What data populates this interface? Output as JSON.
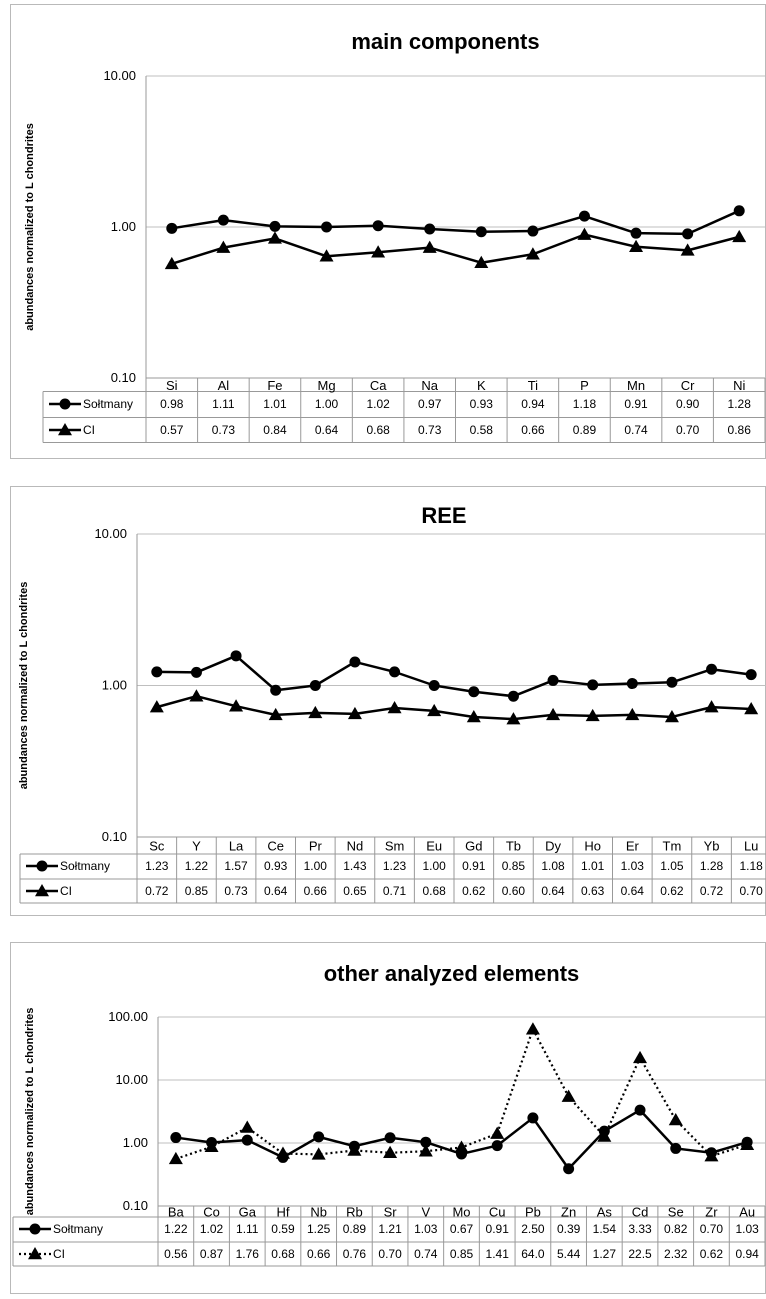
{
  "chart_data": [
    {
      "type": "line",
      "title": "main components",
      "ylabel": "abundances normalized to L chondrites",
      "yscale": "log",
      "ylim": [
        0.1,
        10
      ],
      "yticks": [
        "0.10",
        "1.00",
        "10.00"
      ],
      "categories": [
        "Si",
        "Al",
        "Fe",
        "Mg",
        "Ca",
        "Na",
        "K",
        "Ti",
        "P",
        "Mn",
        "Cr",
        "Ni"
      ],
      "series": [
        {
          "name": "Sołtmany",
          "marker": "circle",
          "style": "solid",
          "values": [
            0.98,
            1.11,
            1.01,
            1.0,
            1.02,
            0.97,
            0.93,
            0.94,
            1.18,
            0.91,
            0.9,
            1.28
          ],
          "labels": [
            "0.98",
            "1.11",
            "1.01",
            "1.00",
            "1.02",
            "0.97",
            "0.93",
            "0.94",
            "1.18",
            "0.91",
            "0.90",
            "1.28"
          ]
        },
        {
          "name": "CI",
          "marker": "triangle",
          "style": "solid",
          "values": [
            0.57,
            0.73,
            0.84,
            0.64,
            0.68,
            0.73,
            0.58,
            0.66,
            0.89,
            0.74,
            0.7,
            0.86
          ],
          "labels": [
            "0.57",
            "0.73",
            "0.84",
            "0.64",
            "0.68",
            "0.73",
            "0.58",
            "0.66",
            "0.89",
            "0.74",
            "0.70",
            "0.86"
          ]
        }
      ],
      "grid": true,
      "legend": "data-table"
    },
    {
      "type": "line",
      "title": "REE",
      "ylabel": "abundances normalized to L chondrites",
      "yscale": "log",
      "ylim": [
        0.1,
        10
      ],
      "yticks": [
        "0.10",
        "1.00",
        "10.00"
      ],
      "categories": [
        "Sc",
        "Y",
        "La",
        "Ce",
        "Pr",
        "Nd",
        "Sm",
        "Eu",
        "Gd",
        "Tb",
        "Dy",
        "Ho",
        "Er",
        "Tm",
        "Yb",
        "Lu"
      ],
      "series": [
        {
          "name": "Sołtmany",
          "marker": "circle",
          "style": "solid",
          "values": [
            1.23,
            1.22,
            1.57,
            0.93,
            1.0,
            1.43,
            1.23,
            1.0,
            0.91,
            0.85,
            1.08,
            1.01,
            1.03,
            1.05,
            1.28,
            1.18
          ],
          "labels": [
            "1.23",
            "1.22",
            "1.57",
            "0.93",
            "1.00",
            "1.43",
            "1.23",
            "1.00",
            "0.91",
            "0.85",
            "1.08",
            "1.01",
            "1.03",
            "1.05",
            "1.28",
            "1.18"
          ]
        },
        {
          "name": "CI",
          "marker": "triangle",
          "style": "solid",
          "values": [
            0.72,
            0.85,
            0.73,
            0.64,
            0.66,
            0.65,
            0.71,
            0.68,
            0.62,
            0.6,
            0.64,
            0.63,
            0.64,
            0.62,
            0.72,
            0.7
          ],
          "labels": [
            "0.72",
            "0.85",
            "0.73",
            "0.64",
            "0.66",
            "0.65",
            "0.71",
            "0.68",
            "0.62",
            "0.60",
            "0.64",
            "0.63",
            "0.64",
            "0.62",
            "0.72",
            "0.70"
          ]
        }
      ],
      "grid": true,
      "legend": "data-table"
    },
    {
      "type": "line",
      "title": "other analyzed elements",
      "ylabel": "abundances normalized to L chondrites",
      "yscale": "log",
      "ylim": [
        0.1,
        100
      ],
      "yticks": [
        "0.10",
        "1.00",
        "10.00",
        "100.00"
      ],
      "categories": [
        "Ba",
        "Co",
        "Ga",
        "Hf",
        "Nb",
        "Rb",
        "Sr",
        "V",
        "Mo",
        "Cu",
        "Pb",
        "Zn",
        "As",
        "Cd",
        "Se",
        "Zr",
        "Au"
      ],
      "series": [
        {
          "name": "Sołtmany",
          "marker": "circle",
          "style": "solid",
          "values": [
            1.22,
            1.02,
            1.11,
            0.59,
            1.25,
            0.89,
            1.21,
            1.03,
            0.67,
            0.91,
            2.5,
            0.39,
            1.54,
            3.33,
            0.82,
            0.7,
            1.03
          ],
          "labels": [
            "1.22",
            "1.02",
            "1.11",
            "0.59",
            "1.25",
            "0.89",
            "1.21",
            "1.03",
            "0.67",
            "0.91",
            "2.50",
            "0.39",
            "1.54",
            "3.33",
            "0.82",
            "0.70",
            "1.03"
          ]
        },
        {
          "name": "CI",
          "marker": "triangle",
          "style": "dotted",
          "values": [
            0.56,
            0.87,
            1.76,
            0.68,
            0.66,
            0.76,
            0.7,
            0.74,
            0.85,
            1.41,
            64.0,
            5.44,
            1.27,
            22.5,
            2.32,
            0.62,
            0.94
          ],
          "labels": [
            "0.56",
            "0.87",
            "1.76",
            "0.68",
            "0.66",
            "0.76",
            "0.70",
            "0.74",
            "0.85",
            "1.41",
            "64.0",
            "5.44",
            "1.27",
            "22.5",
            "2.32",
            "0.62",
            "0.94"
          ]
        }
      ],
      "grid": true,
      "legend": "data-table"
    }
  ],
  "colors": {
    "line": "#000000",
    "grid": "#bfbfbf",
    "border": "#b9b9b9"
  }
}
